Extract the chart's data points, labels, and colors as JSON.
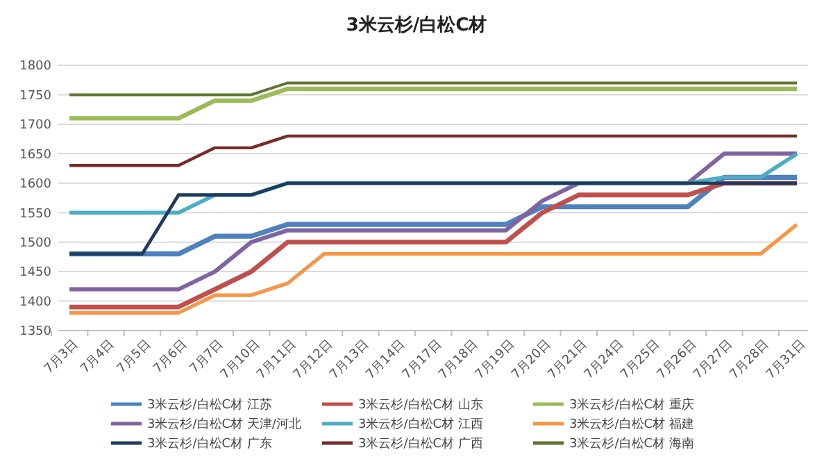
{
  "chart_data": {
    "type": "line",
    "title": "3米云杉/白松C材",
    "categories": [
      "7月3日",
      "7月4日",
      "7月5日",
      "7月6日",
      "7月7日",
      "7月10日",
      "7月11日",
      "7月12日",
      "7月13日",
      "7月14日",
      "7月17日",
      "7月18日",
      "7月19日",
      "7月20日",
      "7月21日",
      "7月24日",
      "7月25日",
      "7月26日",
      "7月27日",
      "7月28日",
      "7月31日"
    ],
    "series": [
      {
        "name": "3米云杉/白松C材 江苏",
        "color": "#4f81bd",
        "values": [
          1480,
          1480,
          1480,
          1480,
          1510,
          1510,
          1530,
          1530,
          1530,
          1530,
          1530,
          1530,
          1530,
          1560,
          1560,
          1560,
          1560,
          1560,
          1610,
          1610,
          1610
        ]
      },
      {
        "name": "3米云杉/白松C材 山东",
        "color": "#c0504d",
        "values": [
          1390,
          1390,
          1390,
          1390,
          1420,
          1450,
          1500,
          1500,
          1500,
          1500,
          1500,
          1500,
          1500,
          1550,
          1580,
          1580,
          1580,
          1580,
          1600,
          1600,
          1600
        ]
      },
      {
        "name": "3米云杉/白松C材 重庆",
        "color": "#9bbb59",
        "values": [
          1710,
          1710,
          1710,
          1710,
          1740,
          1740,
          1760,
          1760,
          1760,
          1760,
          1760,
          1760,
          1760,
          1760,
          1760,
          1760,
          1760,
          1760,
          1760,
          1760,
          1760
        ]
      },
      {
        "name": "3米云杉/白松C材 天津/河北",
        "color": "#8064a2",
        "values": [
          1420,
          1420,
          1420,
          1420,
          1450,
          1500,
          1520,
          1520,
          1520,
          1520,
          1520,
          1520,
          1520,
          1570,
          1600,
          1600,
          1600,
          1600,
          1650,
          1650,
          1650
        ]
      },
      {
        "name": "3米云杉/白松C材 江西",
        "color": "#4bacc6",
        "values": [
          1550,
          1550,
          1550,
          1550,
          1580,
          1580,
          1600,
          1600,
          1600,
          1600,
          1600,
          1600,
          1600,
          1600,
          1600,
          1600,
          1600,
          1600,
          1610,
          1610,
          1650
        ]
      },
      {
        "name": "3米云杉/白松C材 福建",
        "color": "#f79646",
        "values": [
          1380,
          1380,
          1380,
          1380,
          1410,
          1410,
          1430,
          1480,
          1480,
          1480,
          1480,
          1480,
          1480,
          1480,
          1480,
          1480,
          1480,
          1480,
          1480,
          1480,
          1530
        ]
      },
      {
        "name": "3米云杉/白松C材 广东",
        "color": "#1f3b5e",
        "values": [
          1480,
          1480,
          1480,
          1580,
          1580,
          1580,
          1600,
          1600,
          1600,
          1600,
          1600,
          1600,
          1600,
          1600,
          1600,
          1600,
          1600,
          1600,
          1600,
          1600,
          1600
        ]
      },
      {
        "name": "3米云杉/白松C材 广西",
        "color": "#772c2a",
        "values": [
          1630,
          1630,
          1630,
          1630,
          1660,
          1660,
          1680,
          1680,
          1680,
          1680,
          1680,
          1680,
          1680,
          1680,
          1680,
          1680,
          1680,
          1680,
          1680,
          1680,
          1680
        ]
      },
      {
        "name": "3米云杉/白松C材 海南",
        "color": "#5f7530",
        "values": [
          1750,
          1750,
          1750,
          1750,
          1750,
          1750,
          1770,
          1770,
          1770,
          1770,
          1770,
          1770,
          1770,
          1770,
          1770,
          1770,
          1770,
          1770,
          1770,
          1770,
          1770
        ]
      }
    ],
    "ylim": [
      1350,
      1800
    ],
    "yticks": [
      1350,
      1400,
      1450,
      1500,
      1550,
      1600,
      1650,
      1700,
      1750,
      1800
    ],
    "grid": "y",
    "legend": "bottom",
    "marker": "none",
    "line_style": "solid"
  }
}
